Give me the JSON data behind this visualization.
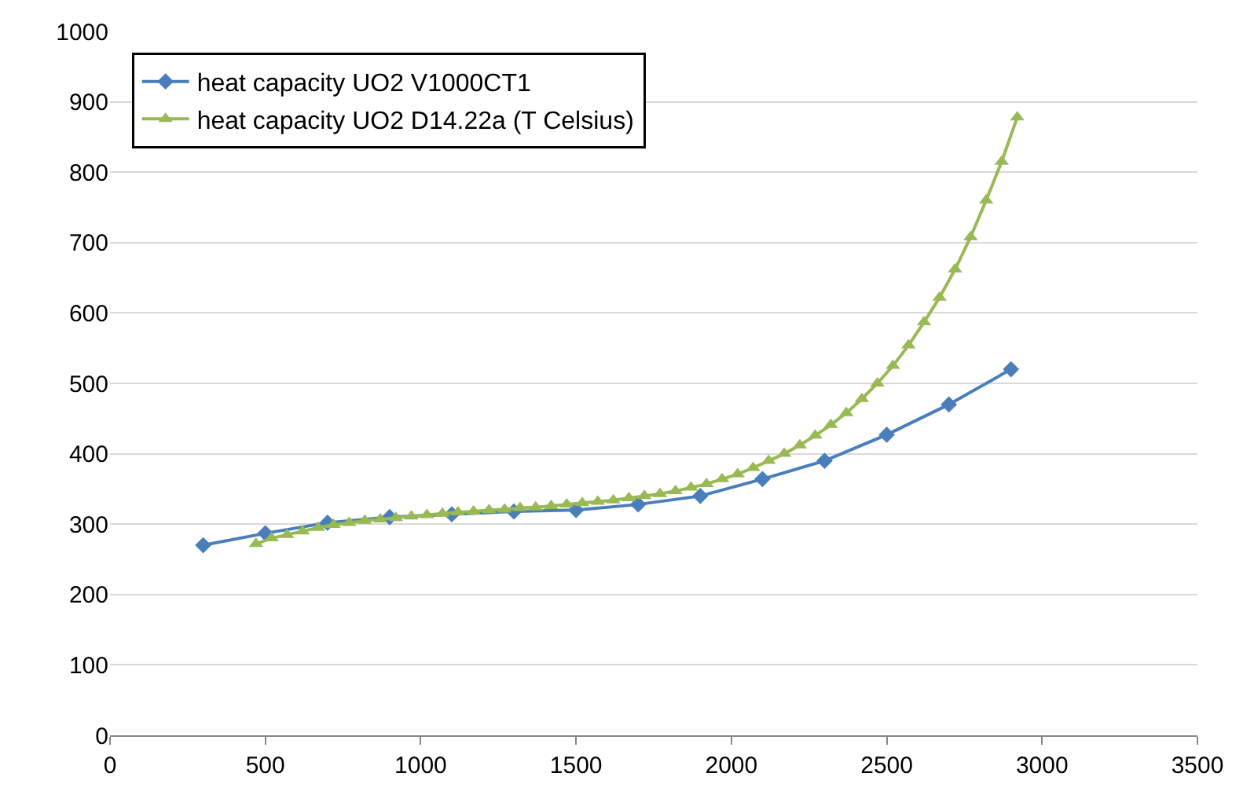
{
  "chart_data": {
    "type": "line",
    "xlim": [
      0,
      3500
    ],
    "xticks": [
      0,
      500,
      1000,
      1500,
      2000,
      2500,
      3000,
      3500
    ],
    "ylim": [
      0,
      1000
    ],
    "yticks": [
      0,
      100,
      200,
      300,
      400,
      500,
      600,
      700,
      800,
      900,
      1000
    ],
    "grid": "y",
    "legend": "top left",
    "series": [
      {
        "name": "heat capacity UO2 V1000CT1",
        "color": "#4a7ebb",
        "marker": "diamond",
        "x": [
          300,
          500,
          700,
          900,
          1100,
          1300,
          1500,
          1700,
          1900,
          2100,
          2300,
          2500,
          2700,
          2900
        ],
        "values": [
          270,
          287,
          302,
          310,
          314,
          318,
          320,
          328,
          340,
          364,
          390,
          427,
          470,
          520
        ]
      },
      {
        "name": "heat capacity UO2 D14.22a (T Celsius)",
        "color": "#98b954",
        "marker": "triangle",
        "x": [
          470,
          520,
          570,
          620,
          670,
          720,
          770,
          820,
          870,
          920,
          970,
          1020,
          1070,
          1120,
          1170,
          1220,
          1270,
          1320,
          1370,
          1420,
          1470,
          1520,
          1570,
          1620,
          1670,
          1720,
          1770,
          1820,
          1870,
          1920,
          1970,
          2020,
          2070,
          2120,
          2170,
          2220,
          2270,
          2320,
          2370,
          2420,
          2470,
          2520,
          2570,
          2620,
          2670,
          2720,
          2770,
          2820,
          2870,
          2920
        ],
        "values": [
          272,
          280,
          285,
          290,
          295,
          299,
          302,
          305,
          307,
          309,
          311,
          313,
          315,
          317,
          318,
          320,
          321,
          323,
          324,
          326,
          328,
          330,
          332,
          334,
          337,
          340,
          343,
          347,
          352,
          357,
          364,
          371,
          380,
          390,
          400,
          412,
          426,
          441,
          458,
          478,
          500,
          525,
          554,
          587,
          622,
          662,
          708,
          760,
          815,
          878
        ]
      }
    ]
  }
}
